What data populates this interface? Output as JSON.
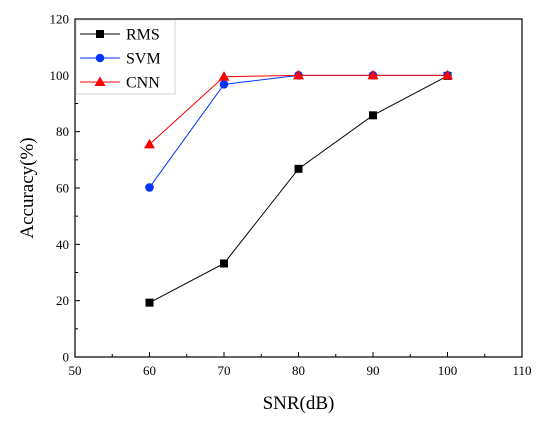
{
  "chart_data": {
    "type": "line",
    "title": "",
    "xlabel": "SNR(dB)",
    "ylabel": "Accuracy(%)",
    "xlim": [
      50,
      110
    ],
    "ylim": [
      0,
      120
    ],
    "xticks": [
      50,
      60,
      70,
      80,
      90,
      100,
      110
    ],
    "yticks": [
      0,
      20,
      40,
      60,
      80,
      100,
      120
    ],
    "grid": false,
    "legend": "top-left",
    "x": [
      60,
      70,
      80,
      90,
      100
    ],
    "series": [
      {
        "name": "RMS",
        "values": [
          19.3,
          33.2,
          66.8,
          85.8,
          99.8
        ],
        "color": "#000000",
        "marker": "square"
      },
      {
        "name": "SVM",
        "values": [
          60.2,
          96.8,
          100,
          100,
          100
        ],
        "color": "#0033ff",
        "marker": "circle"
      },
      {
        "name": "CNN",
        "values": [
          75.5,
          99.5,
          100,
          100,
          100
        ],
        "color": "#ff0000",
        "marker": "triangle"
      }
    ]
  }
}
